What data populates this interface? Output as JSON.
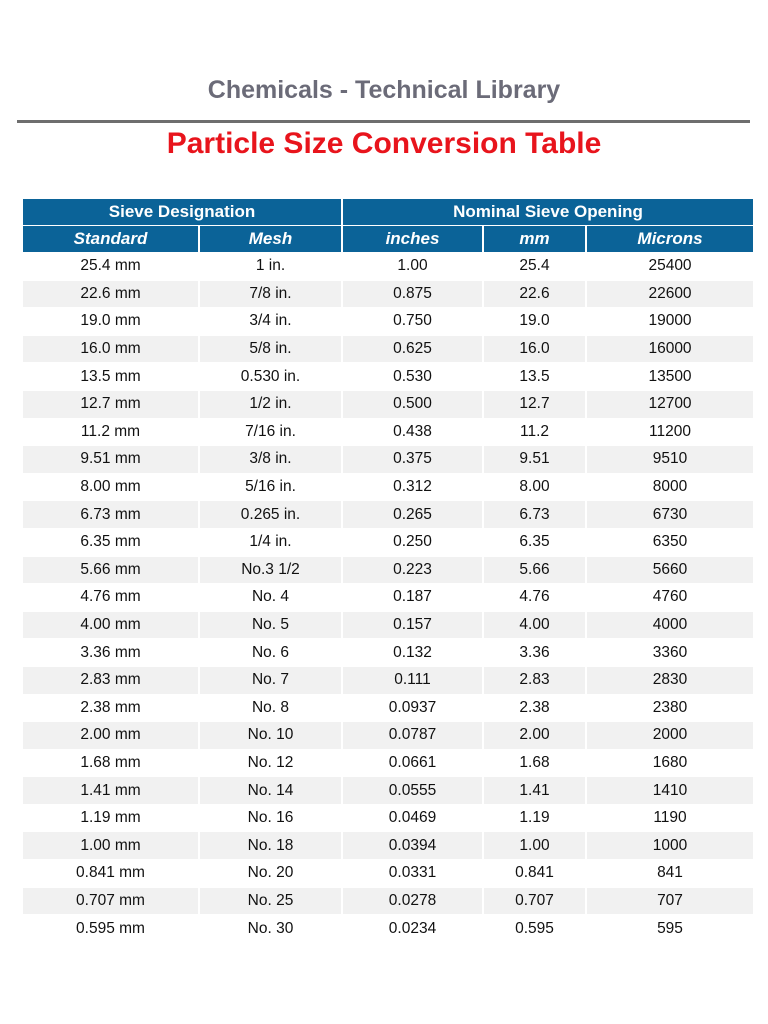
{
  "header": {
    "library_title": "Chemicals - Technical Library",
    "page_title": "Particle Size Conversion Table"
  },
  "colors": {
    "header_bg": "#0b6398",
    "title_red": "#e8141c",
    "library_gray": "#6b6b78",
    "alt_row": "#f1f1f1"
  },
  "table": {
    "group_headers": [
      "Sieve Designation",
      "Nominal Sieve Opening"
    ],
    "columns": [
      "Standard",
      "Mesh",
      "inches",
      "mm",
      "Microns"
    ],
    "rows": [
      [
        "25.4 mm",
        "1 in.",
        "1.00",
        "25.4",
        "25400"
      ],
      [
        "22.6 mm",
        "7/8 in.",
        "0.875",
        "22.6",
        "22600"
      ],
      [
        "19.0 mm",
        "3/4 in.",
        "0.750",
        "19.0",
        "19000"
      ],
      [
        "16.0 mm",
        "5/8 in.",
        "0.625",
        "16.0",
        "16000"
      ],
      [
        "13.5 mm",
        "0.530 in.",
        "0.530",
        "13.5",
        "13500"
      ],
      [
        "12.7 mm",
        "1/2 in.",
        "0.500",
        "12.7",
        "12700"
      ],
      [
        "11.2 mm",
        "7/16 in.",
        "0.438",
        "11.2",
        "11200"
      ],
      [
        "9.51 mm",
        "3/8 in.",
        "0.375",
        "9.51",
        "9510"
      ],
      [
        "8.00 mm",
        "5/16 in.",
        "0.312",
        "8.00",
        "8000"
      ],
      [
        "6.73 mm",
        "0.265 in.",
        "0.265",
        "6.73",
        "6730"
      ],
      [
        "6.35 mm",
        "1/4 in.",
        "0.250",
        "6.35",
        "6350"
      ],
      [
        "5.66 mm",
        "No.3 1/2",
        "0.223",
        "5.66",
        "5660"
      ],
      [
        "4.76 mm",
        "No. 4",
        "0.187",
        "4.76",
        "4760"
      ],
      [
        "4.00 mm",
        "No. 5",
        "0.157",
        "4.00",
        "4000"
      ],
      [
        "3.36 mm",
        "No. 6",
        "0.132",
        "3.36",
        "3360"
      ],
      [
        "2.83 mm",
        "No. 7",
        "0.111",
        "2.83",
        "2830"
      ],
      [
        "2.38 mm",
        "No. 8",
        "0.0937",
        "2.38",
        "2380"
      ],
      [
        "2.00 mm",
        "No. 10",
        "0.0787",
        "2.00",
        "2000"
      ],
      [
        "1.68 mm",
        "No. 12",
        "0.0661",
        "1.68",
        "1680"
      ],
      [
        "1.41 mm",
        "No. 14",
        "0.0555",
        "1.41",
        "1410"
      ],
      [
        "1.19 mm",
        "No. 16",
        "0.0469",
        "1.19",
        "1190"
      ],
      [
        "1.00 mm",
        "No. 18",
        "0.0394",
        "1.00",
        "1000"
      ],
      [
        "0.841 mm",
        "No. 20",
        "0.0331",
        "0.841",
        "841"
      ],
      [
        "0.707 mm",
        "No. 25",
        "0.0278",
        "0.707",
        "707"
      ],
      [
        "0.595 mm",
        "No. 30",
        "0.0234",
        "0.595",
        "595"
      ]
    ]
  }
}
